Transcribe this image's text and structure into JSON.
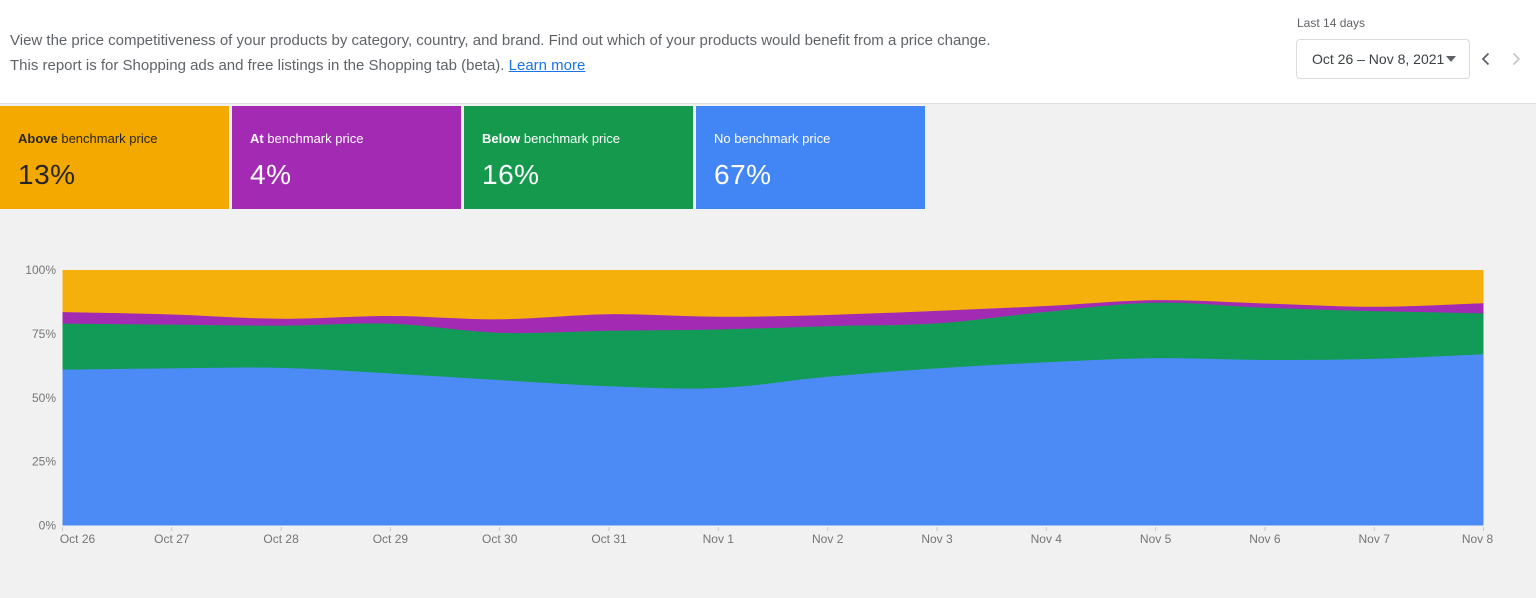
{
  "header": {
    "description_line1": "View the price competitiveness of your products by category, country, and brand. Find out which of your products would benefit from a price change.",
    "description_line2": "This report is for Shopping ads and free listings in the Shopping tab (beta).",
    "learn_more_label": "Learn more",
    "link_color": "#1A73E8",
    "text_color": "#5F6368"
  },
  "date_picker": {
    "label": "Last 14 days",
    "range": "Oct 26 – Nov 8, 2021",
    "prev_enabled": true,
    "next_enabled": false,
    "icons": [
      "dropdown-caret-icon",
      "chevron-left-icon",
      "chevron-right-icon"
    ]
  },
  "summary_cards": [
    {
      "bold": "Above",
      "rest": " benchmark price",
      "value": "13%",
      "bg": "#F4A900",
      "fg": "#262626"
    },
    {
      "bold": "At",
      "rest": " benchmark price",
      "value": "4%",
      "bg": "#A32BB4",
      "fg": "#FFFFFF"
    },
    {
      "bold": "Below",
      "rest": " benchmark price",
      "value": "16%",
      "bg": "#159A4D",
      "fg": "#FFFFFF"
    },
    {
      "bold": "",
      "rest": "No benchmark price",
      "value": "67%",
      "bg": "#4285F4",
      "fg": "#FFFFFF"
    }
  ],
  "chart_data": {
    "type": "area",
    "stacked": true,
    "normalized": "percent",
    "title": "",
    "xlabel": "",
    "ylabel": "",
    "ylim": [
      0,
      100
    ],
    "grid": false,
    "legend": "none (colors match summary cards)",
    "y_ticks": [
      "0%",
      "25%",
      "50%",
      "75%",
      "100%"
    ],
    "x": [
      "Oct 26",
      "Oct 27",
      "Oct 28",
      "Oct 29",
      "Oct 30",
      "Oct 31",
      "Nov 1",
      "Nov 2",
      "Nov 3",
      "Nov 4",
      "Nov 5",
      "Nov 6",
      "Nov 7",
      "Nov 8"
    ],
    "series": [
      {
        "name": "No benchmark price",
        "color": "#4C8BF5",
        "values": [
          61.0,
          61.5,
          61.7,
          59.5,
          56.9,
          54.5,
          53.8,
          58.2,
          61.5,
          63.9,
          65.5,
          64.8,
          65.2,
          67.0
        ]
      },
      {
        "name": "Below benchmark price",
        "color": "#129B57",
        "values": [
          18.0,
          17.1,
          16.5,
          19.5,
          18.5,
          21.7,
          22.9,
          19.8,
          17.6,
          19.7,
          21.7,
          20.4,
          18.7,
          16.0
        ]
      },
      {
        "name": "At benchmark price",
        "color": "#A32BB4",
        "values": [
          4.5,
          4.0,
          2.7,
          3.0,
          5.3,
          6.5,
          5.0,
          4.4,
          4.9,
          2.3,
          1.0,
          1.7,
          1.7,
          4.0
        ]
      },
      {
        "name": "Above benchmark price",
        "color": "#F6B00B",
        "values": [
          16.5,
          17.4,
          19.1,
          18.0,
          19.3,
          17.3,
          18.3,
          17.6,
          16.0,
          14.1,
          11.8,
          13.1,
          14.4,
          13.0
        ]
      }
    ],
    "axis_text_color": "#757575"
  }
}
